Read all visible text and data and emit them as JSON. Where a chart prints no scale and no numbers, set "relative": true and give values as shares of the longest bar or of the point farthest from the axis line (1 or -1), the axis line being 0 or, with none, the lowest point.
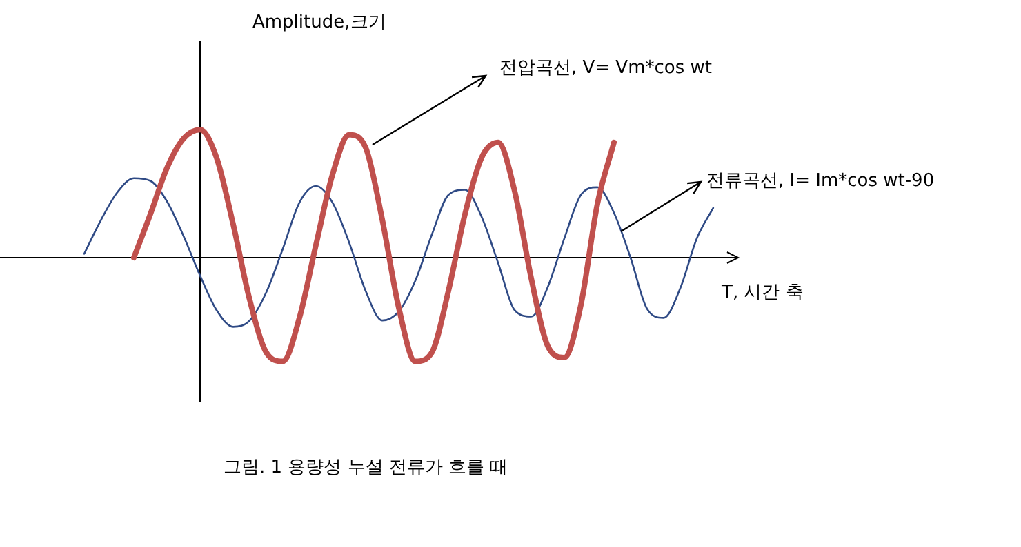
{
  "chart_data": {
    "type": "line",
    "relative": true,
    "xlabel": "T, 시간 축",
    "annotations": [
      "Amplitude,크기",
      "전압곡선, V= Vm*cos wt",
      "전류곡선, I= Im*cos wt-90",
      "그림. 1 용량성 누설 전류가 흐를 때"
    ],
    "categories": [
      null,
      null,
      null,
      null,
      null,
      null,
      null,
      null,
      null,
      null,
      null,
      null,
      null,
      null,
      null,
      null,
      null,
      null,
      null,
      null,
      null,
      null,
      null,
      null,
      null,
      null,
      null,
      null,
      null,
      null,
      null,
      null,
      null,
      null,
      null,
      null,
      null,
      null,
      null
    ],
    "series": [
      {
        "color": "#c0504d",
        "values": [
          null,
          null,
          null,
          0,
          0.34,
          0.7,
          0.93,
          1,
          0.78,
          0.26,
          -0.33,
          -0.74,
          -0.81,
          -0.47,
          0.1,
          0.65,
          0.96,
          0.86,
          0.3,
          -0.39,
          -0.81,
          -0.74,
          -0.26,
          0.34,
          0.78,
          0.9,
          0.52,
          -0.16,
          -0.69,
          -0.78,
          -0.37,
          0.42,
          0.9,
          null,
          null,
          null,
          null,
          null,
          null
        ]
      },
      {
        "color": "#2f4a85",
        "values": [
          0.03,
          0.29,
          0.51,
          0.62,
          0.6,
          0.44,
          0.17,
          -0.14,
          -0.41,
          -0.54,
          -0.49,
          -0.27,
          0.07,
          0.43,
          0.56,
          0.43,
          0.12,
          -0.26,
          -0.49,
          -0.42,
          -0.18,
          0.18,
          0.49,
          0.53,
          0.32,
          -0.04,
          -0.41,
          -0.46,
          -0.23,
          0.15,
          0.49,
          0.55,
          0.35,
          0,
          -0.4,
          -0.47,
          -0.24,
          0.15,
          0.39
        ]
      }
    ]
  }
}
